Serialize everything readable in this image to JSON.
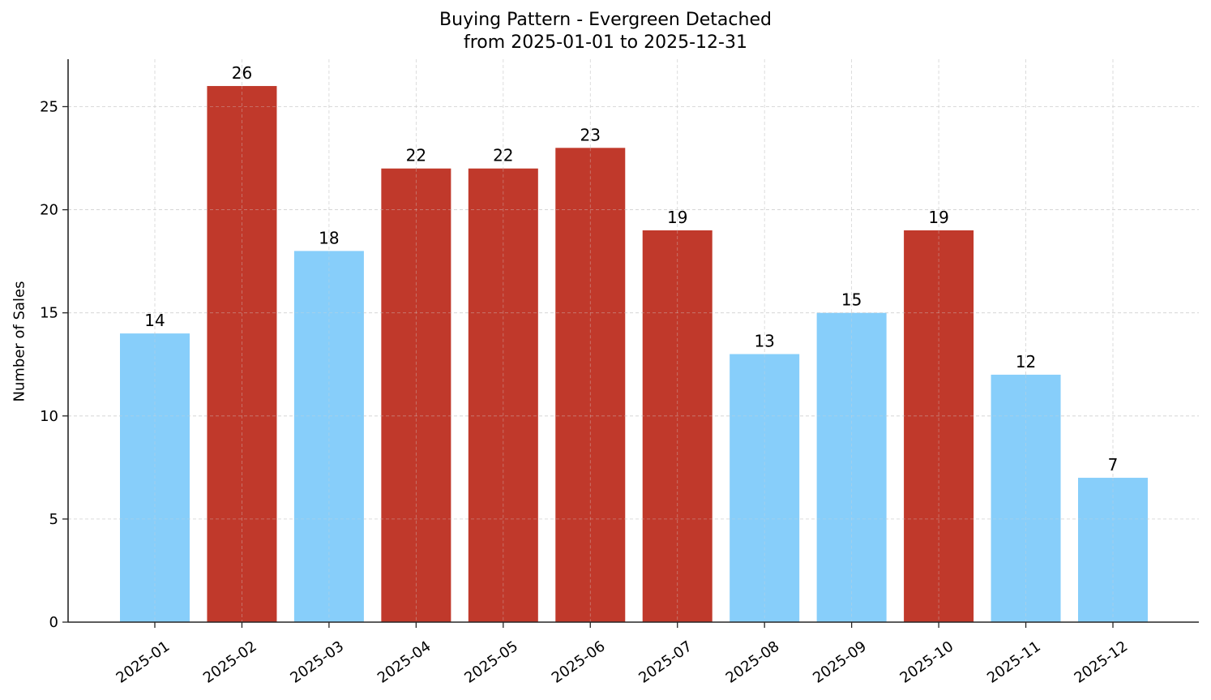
{
  "chart_data": {
    "type": "bar",
    "title": "Buying Pattern - Evergreen Detached",
    "subtitle": "from 2025-01-01 to 2025-12-31",
    "xlabel": "",
    "ylabel": "Number of Sales",
    "categories": [
      "2025-01",
      "2025-02",
      "2025-03",
      "2025-04",
      "2025-05",
      "2025-06",
      "2025-07",
      "2025-08",
      "2025-09",
      "2025-10",
      "2025-11",
      "2025-12"
    ],
    "values": [
      14,
      26,
      18,
      22,
      22,
      23,
      19,
      13,
      15,
      19,
      12,
      7
    ],
    "bar_colors": [
      "#87CEFA",
      "#C0392B",
      "#87CEFA",
      "#C0392B",
      "#C0392B",
      "#C0392B",
      "#C0392B",
      "#87CEFA",
      "#87CEFA",
      "#C0392B",
      "#87CEFA",
      "#87CEFA"
    ],
    "ylim": [
      0,
      27.3
    ],
    "yticks": [
      0,
      5,
      10,
      15,
      20,
      25
    ],
    "grid": true,
    "data_labels": true,
    "legend": null
  },
  "colors": {
    "low": "#87CEFA",
    "high": "#C0392B",
    "axis": "#262626",
    "grid": "#d3d3d3"
  }
}
